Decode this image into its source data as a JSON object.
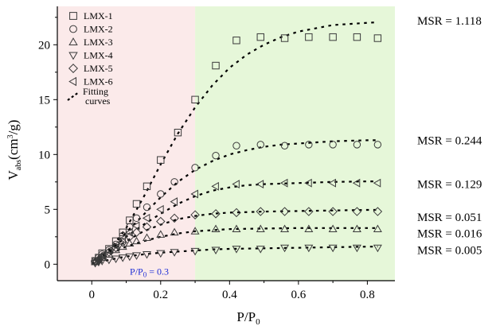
{
  "chart_data": {
    "type": "scatter",
    "xlabel": "P/P",
    "xlabel_sub": "0",
    "ylabel": "V",
    "ylabel_sub": "abs",
    "ylabel_unit": "(cm",
    "ylabel_unit_sup": "3",
    "ylabel_unit_tail": "/g)",
    "xlim": [
      -0.1,
      0.88
    ],
    "ylim": [
      -1.5,
      23.5
    ],
    "xticks": [
      0,
      0.2,
      0.4,
      0.6,
      0.8
    ],
    "xtick_labels": [
      "0",
      "0.2",
      "0.4",
      "0.6",
      "0.8"
    ],
    "yticks": [
      0,
      5,
      10,
      15,
      20
    ],
    "ytick_labels": [
      "0",
      "5",
      "10",
      "15",
      "20"
    ],
    "regions": [
      {
        "x_from": -0.1,
        "x_to": 0.3,
        "color": "#fbeaea"
      },
      {
        "x_from": 0.3,
        "x_to": 0.88,
        "color": "#e6f7d9"
      }
    ],
    "annotation": {
      "text": "P/P",
      "sub": "0",
      "tail": " = 0.3",
      "x": 0.3,
      "y": -0.6,
      "color": "#1f2fd6"
    },
    "legend": {
      "position": "top-left",
      "fit_label_1": "Fitting",
      "fit_label_2": "curves"
    },
    "series": [
      {
        "name": "LMX-1",
        "marker": "square",
        "x": [
          0.01,
          0.02,
          0.03,
          0.05,
          0.07,
          0.09,
          0.11,
          0.13,
          0.16,
          0.2,
          0.25,
          0.3,
          0.36,
          0.42,
          0.49,
          0.56,
          0.63,
          0.7,
          0.77,
          0.83
        ],
        "y": [
          0.3,
          0.6,
          1.0,
          1.4,
          2.1,
          2.9,
          4.0,
          5.5,
          7.1,
          9.5,
          12.0,
          15.0,
          18.1,
          20.4,
          20.7,
          20.6,
          20.7,
          20.7,
          20.7,
          20.6
        ],
        "fit_x": [
          0.0,
          0.05,
          0.1,
          0.15,
          0.2,
          0.25,
          0.3,
          0.35,
          0.4,
          0.45,
          0.5,
          0.55,
          0.6,
          0.65,
          0.7,
          0.75,
          0.8,
          0.83
        ],
        "fit_y": [
          0.0,
          1.2,
          3.3,
          6.1,
          9.1,
          11.9,
          14.3,
          16.3,
          17.9,
          19.1,
          20.0,
          20.7,
          21.2,
          21.5,
          21.8,
          21.9,
          22.0,
          22.05
        ],
        "msr_label": "MSR = 1.118",
        "msr_y": 22.2
      },
      {
        "name": "LMX-2",
        "marker": "circle",
        "x": [
          0.01,
          0.02,
          0.03,
          0.05,
          0.07,
          0.09,
          0.11,
          0.13,
          0.16,
          0.2,
          0.24,
          0.3,
          0.36,
          0.42,
          0.49,
          0.56,
          0.63,
          0.7,
          0.77,
          0.83
        ],
        "y": [
          0.3,
          0.6,
          0.9,
          1.3,
          1.8,
          2.6,
          3.4,
          4.2,
          5.2,
          6.4,
          7.5,
          8.8,
          9.9,
          10.8,
          10.9,
          10.8,
          10.9,
          10.9,
          10.9,
          10.9
        ],
        "fit_x": [
          0.0,
          0.05,
          0.1,
          0.15,
          0.2,
          0.25,
          0.3,
          0.35,
          0.4,
          0.45,
          0.5,
          0.55,
          0.6,
          0.65,
          0.7,
          0.75,
          0.8,
          0.83
        ],
        "fit_y": [
          0.0,
          1.3,
          2.9,
          4.5,
          6.1,
          7.5,
          8.6,
          9.4,
          10.0,
          10.4,
          10.7,
          10.9,
          11.0,
          11.1,
          11.2,
          11.25,
          11.3,
          11.3
        ],
        "msr_label": "MSR = 0.244",
        "msr_y": 11.3
      },
      {
        "name": "LMX-3",
        "marker": "triangle-up",
        "x": [
          0.01,
          0.02,
          0.03,
          0.05,
          0.07,
          0.09,
          0.11,
          0.13,
          0.16,
          0.2,
          0.24,
          0.3,
          0.36,
          0.42,
          0.49,
          0.56,
          0.63,
          0.7,
          0.77,
          0.83
        ],
        "y": [
          0.2,
          0.4,
          0.6,
          0.9,
          1.3,
          1.6,
          1.9,
          2.1,
          2.4,
          2.7,
          2.9,
          3.0,
          3.2,
          3.2,
          3.2,
          3.2,
          3.2,
          3.2,
          3.2,
          3.2
        ],
        "fit_x": [
          0.0,
          0.05,
          0.1,
          0.15,
          0.2,
          0.25,
          0.3,
          0.35,
          0.4,
          0.5,
          0.6,
          0.7,
          0.8,
          0.83
        ],
        "fit_y": [
          0.0,
          0.9,
          1.6,
          2.1,
          2.5,
          2.8,
          3.0,
          3.1,
          3.2,
          3.25,
          3.3,
          3.3,
          3.3,
          3.3
        ],
        "msr_label": "MSR = 0.016",
        "msr_y": 2.8
      },
      {
        "name": "LMX-4",
        "marker": "triangle-down",
        "x": [
          0.01,
          0.02,
          0.03,
          0.05,
          0.07,
          0.09,
          0.11,
          0.13,
          0.16,
          0.2,
          0.24,
          0.3,
          0.36,
          0.42,
          0.49,
          0.56,
          0.63,
          0.7,
          0.77,
          0.83
        ],
        "y": [
          0.1,
          0.2,
          0.3,
          0.4,
          0.5,
          0.6,
          0.7,
          0.8,
          0.9,
          1.0,
          1.1,
          1.2,
          1.3,
          1.4,
          1.4,
          1.5,
          1.5,
          1.5,
          1.5,
          1.5
        ],
        "fit_x": [
          0.0,
          0.05,
          0.1,
          0.15,
          0.2,
          0.25,
          0.3,
          0.35,
          0.4,
          0.5,
          0.6,
          0.7,
          0.8,
          0.83
        ],
        "fit_y": [
          0.0,
          0.4,
          0.7,
          0.9,
          1.05,
          1.15,
          1.25,
          1.35,
          1.4,
          1.45,
          1.5,
          1.55,
          1.6,
          1.6
        ],
        "msr_label": "MSR = 0.005",
        "msr_y": 1.3
      },
      {
        "name": "LMX-5",
        "marker": "diamond",
        "x": [
          0.01,
          0.02,
          0.03,
          0.05,
          0.07,
          0.09,
          0.11,
          0.13,
          0.16,
          0.2,
          0.24,
          0.3,
          0.36,
          0.42,
          0.49,
          0.56,
          0.63,
          0.7,
          0.77,
          0.83
        ],
        "y": [
          0.2,
          0.4,
          0.7,
          1.1,
          1.5,
          2.0,
          2.5,
          2.9,
          3.4,
          3.9,
          4.2,
          4.5,
          4.6,
          4.7,
          4.8,
          4.8,
          4.8,
          4.8,
          4.8,
          4.8
        ],
        "fit_x": [
          0.0,
          0.05,
          0.1,
          0.15,
          0.2,
          0.25,
          0.3,
          0.35,
          0.4,
          0.5,
          0.6,
          0.7,
          0.8,
          0.83
        ],
        "fit_y": [
          0.0,
          1.1,
          2.1,
          3.0,
          3.6,
          4.1,
          4.4,
          4.6,
          4.7,
          4.8,
          4.85,
          4.9,
          4.95,
          4.95
        ],
        "msr_label": "MSR = 0.051",
        "msr_y": 4.3
      },
      {
        "name": "LMX-6",
        "marker": "triangle-left",
        "x": [
          0.01,
          0.02,
          0.03,
          0.05,
          0.07,
          0.09,
          0.11,
          0.13,
          0.16,
          0.2,
          0.24,
          0.3,
          0.36,
          0.42,
          0.49,
          0.56,
          0.63,
          0.7,
          0.77,
          0.83
        ],
        "y": [
          0.3,
          0.5,
          0.8,
          1.2,
          1.7,
          2.3,
          2.9,
          3.5,
          4.2,
          5.0,
          5.7,
          6.4,
          7.1,
          7.3,
          7.3,
          7.4,
          7.4,
          7.4,
          7.4,
          7.4
        ],
        "fit_x": [
          0.0,
          0.05,
          0.1,
          0.15,
          0.2,
          0.25,
          0.3,
          0.35,
          0.4,
          0.45,
          0.5,
          0.6,
          0.7,
          0.8,
          0.83
        ],
        "fit_y": [
          0.0,
          1.2,
          2.5,
          3.6,
          4.6,
          5.5,
          6.2,
          6.7,
          7.0,
          7.2,
          7.3,
          7.4,
          7.5,
          7.55,
          7.55
        ],
        "msr_label": "MSR = 0.129",
        "msr_y": 7.3
      }
    ]
  }
}
